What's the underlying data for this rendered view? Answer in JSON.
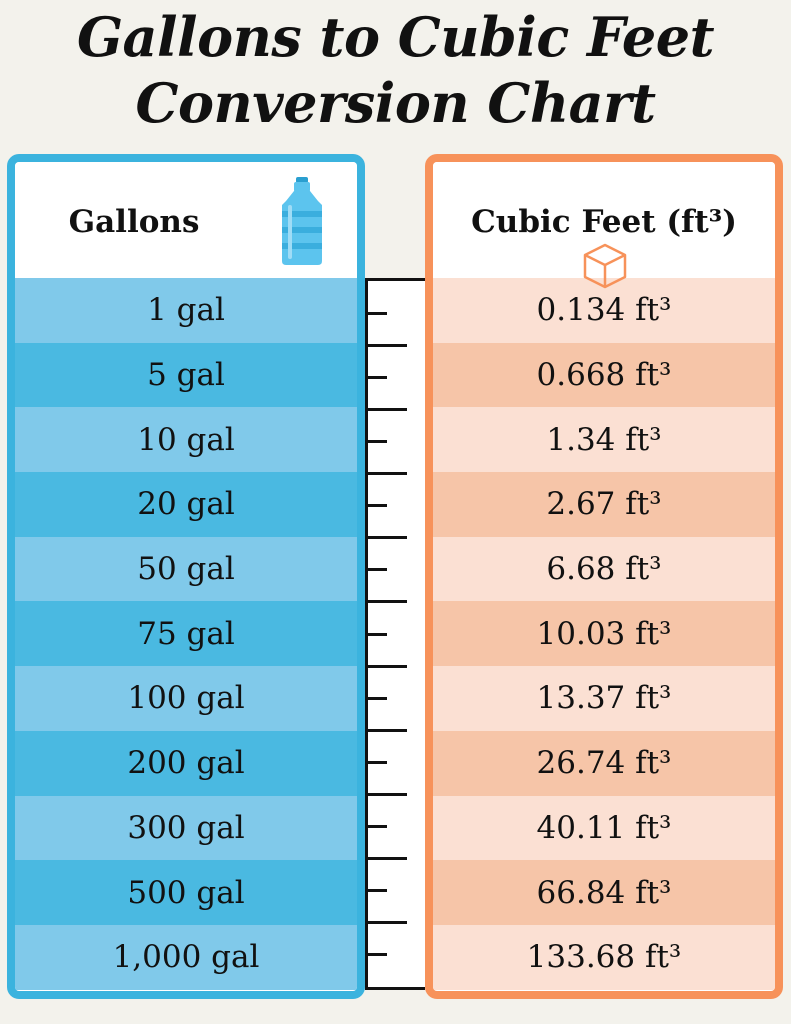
{
  "title": {
    "line1": "Gallons to Cubic Feet",
    "line2": "Conversion Chart"
  },
  "left_column": {
    "header": "Gallons",
    "icon": "water-jug-icon",
    "border_color": "#3bb3de"
  },
  "right_column": {
    "header": "Cubic Feet (ft³)",
    "icon": "cube-icon",
    "border_color": "#f7925a"
  },
  "chart_data": {
    "type": "table",
    "title": "Gallons to Cubic Feet Conversion Chart",
    "columns": [
      "Gallons",
      "Cubic Feet (ft³)"
    ],
    "rows": [
      {
        "gallons": "1 gal",
        "cubic_feet": "0.134 ft³"
      },
      {
        "gallons": "5 gal",
        "cubic_feet": "0.668 ft³"
      },
      {
        "gallons": "10 gal",
        "cubic_feet": "1.34 ft³"
      },
      {
        "gallons": "20 gal",
        "cubic_feet": "2.67 ft³"
      },
      {
        "gallons": "50 gal",
        "cubic_feet": "6.68 ft³"
      },
      {
        "gallons": "75 gal",
        "cubic_feet": "10.03 ft³"
      },
      {
        "gallons": "100 gal",
        "cubic_feet": "13.37 ft³"
      },
      {
        "gallons": "200 gal",
        "cubic_feet": "26.74 ft³"
      },
      {
        "gallons": "300 gal",
        "cubic_feet": "40.11 ft³"
      },
      {
        "gallons": "500 gal",
        "cubic_feet": "66.84 ft³"
      },
      {
        "gallons": "1,000 gal",
        "cubic_feet": "133.68 ft³"
      }
    ]
  }
}
